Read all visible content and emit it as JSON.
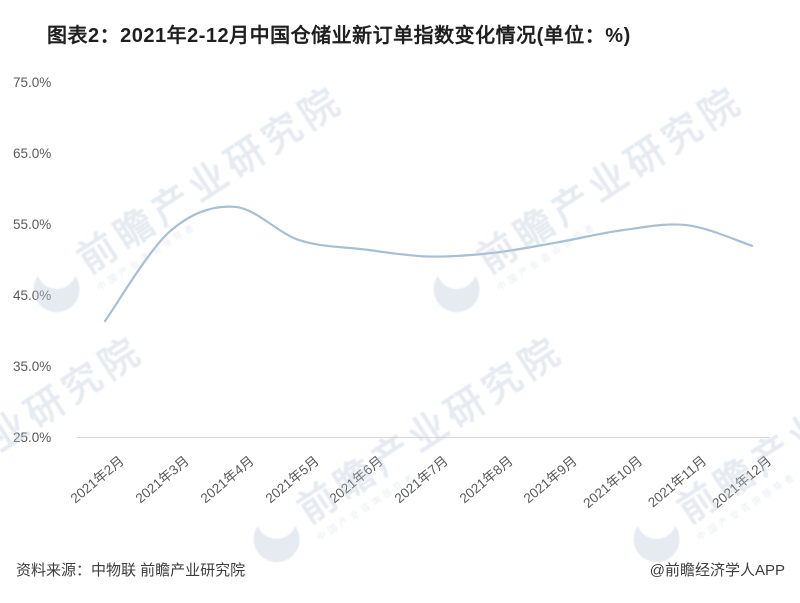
{
  "title": "图表2：2021年2-12月中国仓储业新订单指数变化情况(单位：%)",
  "footer": {
    "source": "资料来源：中物联 前瞻产业研究院",
    "credit": "@前瞻经济学人APP"
  },
  "watermark": {
    "logo": "globe-logo",
    "text": "前瞻产业研究院",
    "subtitle": "中国产业咨询领导者"
  },
  "colors": {
    "line": "#a7bfd5",
    "axis": "#d9d9d9",
    "tick_text": "#595959",
    "title_text": "#1f1f1f",
    "watermark": "#c2cedd"
  },
  "chart_data": {
    "type": "line",
    "title": "2021年2-12月中国仓储业新订单指数变化情况",
    "unit": "%",
    "categories": [
      "2021年2月",
      "2021年3月",
      "2021年4月",
      "2021年5月",
      "2021年6月",
      "2021年7月",
      "2021年8月",
      "2021年9月",
      "2021年10月",
      "2021年11月",
      "2021年12月"
    ],
    "values": [
      41.4,
      54.0,
      57.5,
      52.8,
      51.5,
      50.5,
      51.0,
      52.5,
      54.2,
      54.9,
      52.0
    ],
    "xlabel": "",
    "ylabel": "",
    "ylim": [
      25,
      75
    ],
    "y_ticks": [
      75,
      65,
      55,
      45,
      35,
      25
    ],
    "y_tick_labels": [
      "75.0%",
      "65.0%",
      "55.0%",
      "45.0%",
      "35.0%",
      "25.0%"
    ],
    "grid": false,
    "legend": false,
    "smooth": true
  }
}
